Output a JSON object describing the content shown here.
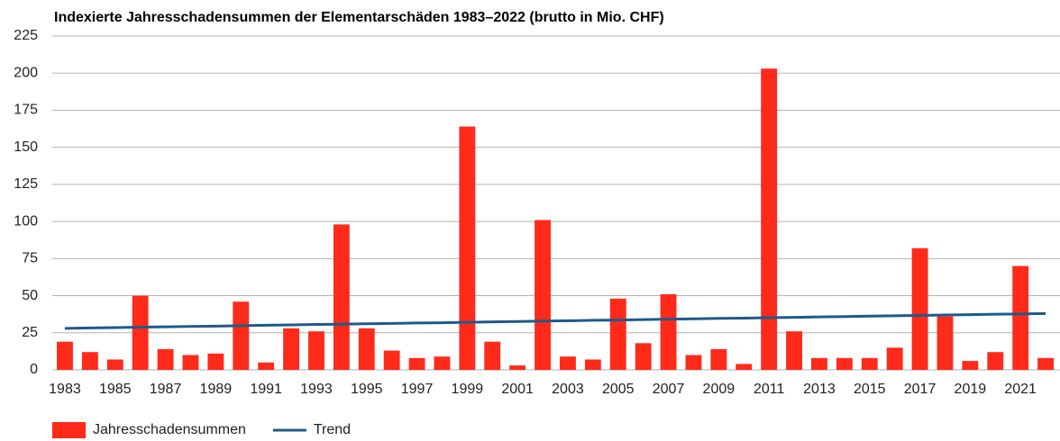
{
  "chart_data": {
    "type": "bar",
    "title": "Indexierte Jahresschadensummen der Elementarschäden 1983–2022 (brutto in Mio. CHF)",
    "categories": [
      "1983",
      null,
      "1985",
      null,
      "1987",
      null,
      "1989",
      null,
      "1991",
      null,
      "1993",
      null,
      "1995",
      null,
      "1997",
      null,
      "1999",
      null,
      "2001",
      null,
      "2003",
      null,
      "2005",
      null,
      "2007",
      null,
      "2009",
      null,
      "2011",
      null,
      "2013",
      null,
      "2015",
      null,
      "2017",
      null,
      "2019",
      null,
      "2021",
      null
    ],
    "series": [
      {
        "name": "Jahresschadensummen",
        "type": "bar",
        "color": "#ff2a1a",
        "values": [
          19,
          12,
          7,
          50,
          14,
          10,
          11,
          46,
          5,
          28,
          26,
          98,
          28,
          13,
          8,
          9,
          164,
          19,
          3,
          101,
          9,
          7,
          48,
          18,
          51,
          10,
          14,
          4,
          203,
          26,
          8,
          8,
          8,
          15,
          82,
          36,
          6,
          12,
          70,
          8
        ]
      },
      {
        "name": "Trend",
        "type": "line",
        "color": "#1f5a8a",
        "values": [
          28.0,
          28.3,
          28.5,
          28.8,
          29.0,
          29.3,
          29.5,
          29.8,
          30.1,
          30.3,
          30.6,
          30.8,
          31.1,
          31.3,
          31.6,
          31.8,
          32.1,
          32.4,
          32.6,
          32.9,
          33.1,
          33.4,
          33.6,
          33.9,
          34.2,
          34.4,
          34.7,
          34.9,
          35.2,
          35.4,
          35.7,
          35.9,
          36.2,
          36.5,
          36.7,
          37.0,
          37.2,
          37.5,
          37.7,
          38.0
        ]
      }
    ],
    "ylim": [
      0,
      225
    ],
    "yticks": [
      0,
      25,
      50,
      75,
      100,
      125,
      150,
      175,
      200,
      225
    ],
    "grid": true
  }
}
